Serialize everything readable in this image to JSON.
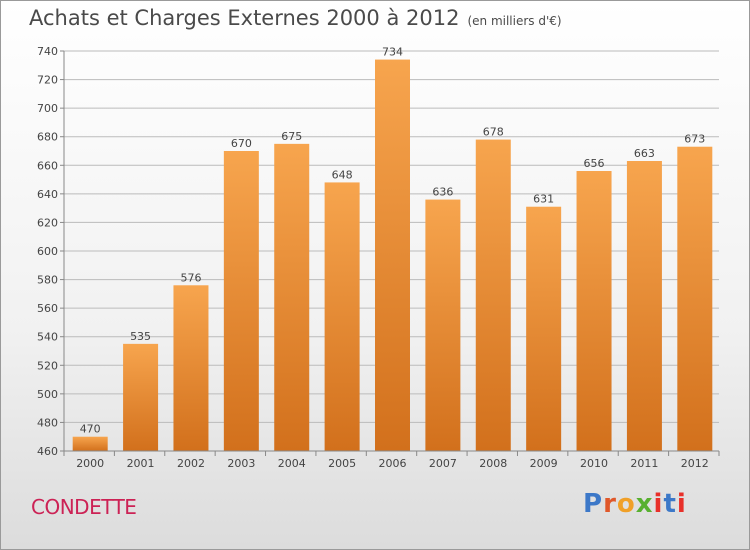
{
  "header": {
    "title": "Achats et Charges Externes 2000 à 2012",
    "subtitle": "(en milliers d'€)"
  },
  "footer": {
    "commune": "CONDETTE",
    "logo": {
      "text": "Proxiti",
      "letter_colors": [
        "#3c78c8",
        "#e0582a",
        "#f0a028",
        "#58b030",
        "#e8302a",
        "#3c78c8",
        "#e8302a"
      ]
    }
  },
  "colors": {
    "bar_top": "#f7a54e",
    "bar_bottom": "#d2701c",
    "grid": "#bbbbbb",
    "axis_text": "#444444",
    "label_text": "#444444"
  },
  "chart_data": {
    "type": "bar",
    "title": "Achats et Charges Externes 2000 à 2012",
    "subtitle": "(en milliers d'€)",
    "categories": [
      "2000",
      "2001",
      "2002",
      "2003",
      "2004",
      "2005",
      "2006",
      "2007",
      "2008",
      "2009",
      "2010",
      "2011",
      "2012"
    ],
    "values": [
      470,
      535,
      576,
      670,
      675,
      648,
      734,
      636,
      678,
      631,
      656,
      663,
      673
    ],
    "ylim": [
      460,
      740
    ],
    "yticks": [
      460,
      480,
      500,
      520,
      540,
      560,
      580,
      600,
      620,
      640,
      660,
      680,
      700,
      720,
      740
    ],
    "grid": true,
    "data_labels": true
  }
}
